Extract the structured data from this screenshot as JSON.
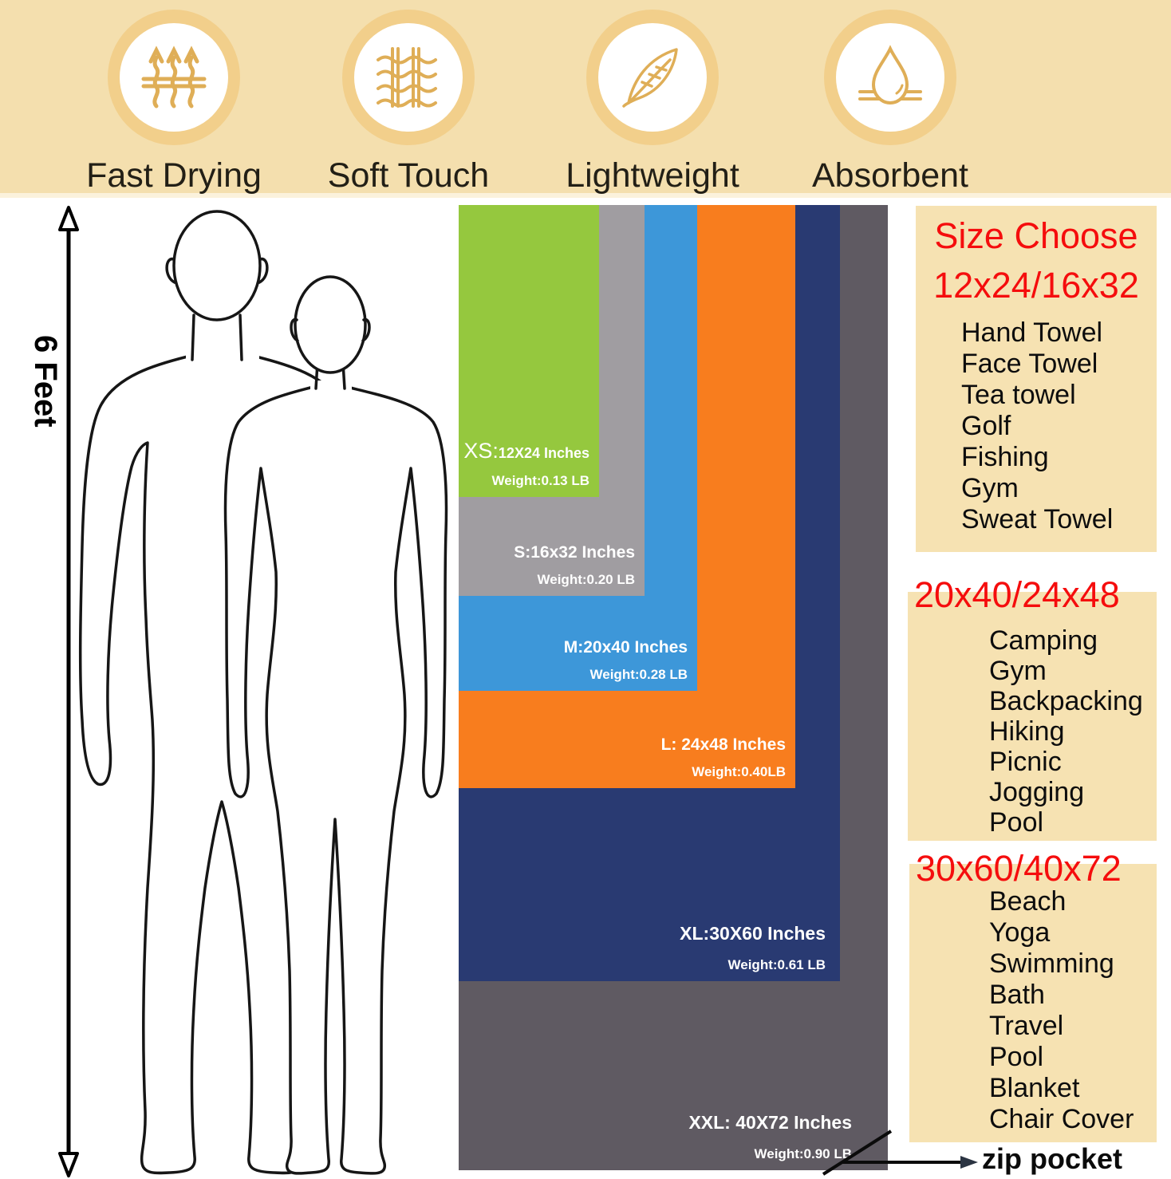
{
  "banner": {
    "features": [
      {
        "icon": "heat-arrows-icon",
        "label": "Fast Drying"
      },
      {
        "icon": "fabric-weave-icon",
        "label": "Soft Touch"
      },
      {
        "icon": "feather-icon",
        "label": "Lightweight"
      },
      {
        "icon": "water-drop-icon",
        "label": "Absorbent"
      }
    ]
  },
  "measure": {
    "label": "6 Feet"
  },
  "sizes": [
    {
      "code": "XS",
      "prefix": "XS:",
      "rest": "12X24 Inches",
      "weight": "Weight:0.13 LB",
      "color": "#95c83e"
    },
    {
      "code": "S",
      "prefix": "S:",
      "rest": "16x32 Inches",
      "weight": "Weight:0.20 LB",
      "color": "#a09da1"
    },
    {
      "code": "M",
      "prefix": "M:",
      "rest": "20x40 Inches",
      "weight": "Weight:0.28 LB",
      "color": "#3d97d9"
    },
    {
      "code": "L",
      "prefix": "L: ",
      "rest": "24x48 Inches",
      "weight": "Weight:0.40LB",
      "color": "#f87d1e"
    },
    {
      "code": "XL",
      "prefix": "XL:",
      "rest": "30X60 Inches",
      "weight": "Weight:0.61 LB",
      "color": "#293a72"
    },
    {
      "code": "XXL",
      "prefix": "XXL: ",
      "rest": "40X72 Inches",
      "weight": "Weight:0.90 LB",
      "color": "#5f5a62"
    }
  ],
  "panels": [
    {
      "title": "Size Choose",
      "heading": "12x24/16x32",
      "items": [
        "Hand Towel",
        "Face Towel",
        "Tea towel",
        "Golf",
        "Fishing",
        "Gym",
        "Sweat Towel"
      ]
    },
    {
      "heading": "20x40/24x48",
      "items": [
        "Camping",
        "Gym",
        "Backpacking",
        "Hiking",
        "Picnic",
        "Jogging",
        "Pool"
      ]
    },
    {
      "heading": "30x60/40x72",
      "items": [
        "Beach",
        "Yoga",
        "Swimming",
        "Bath",
        "Travel",
        "Pool",
        "Blanket",
        "Chair Cover"
      ]
    }
  ],
  "callout": {
    "label": "zip pocket"
  },
  "colors": {
    "red": "#f50d0d",
    "panel_bg": "#f6e2b2",
    "banner_bg": "#f4dfae",
    "ring": "#f2cf8b",
    "icon_gold": "#dfae57",
    "text_dark": "#1d1b16",
    "outline": "#161616"
  }
}
